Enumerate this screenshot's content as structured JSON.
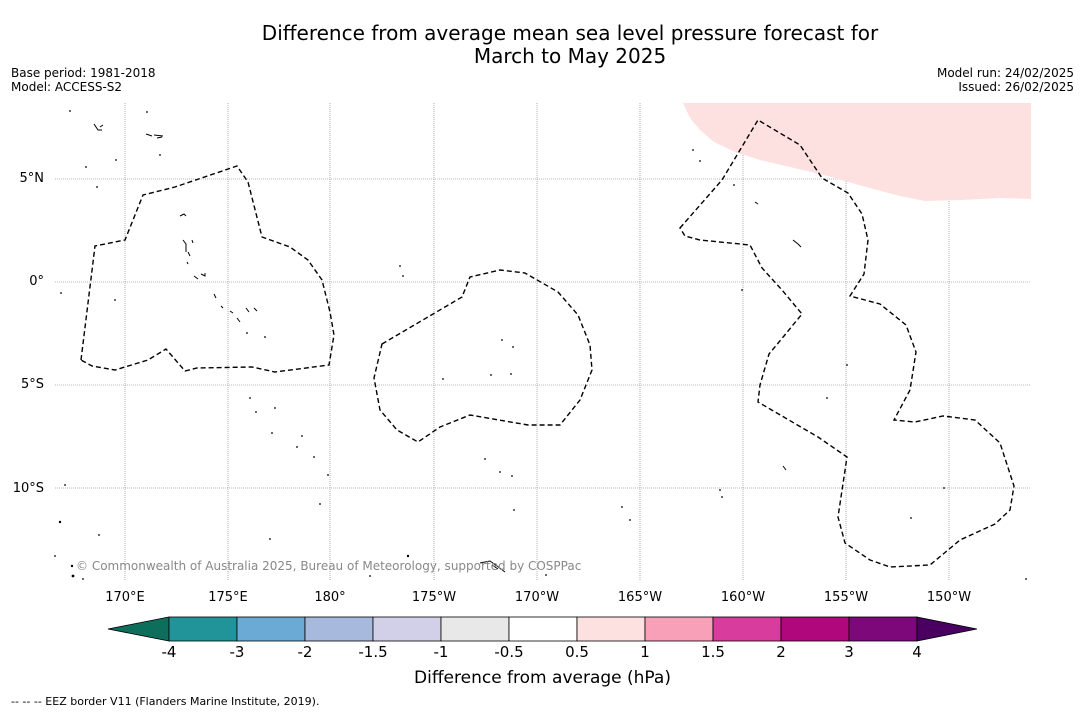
{
  "title": {
    "line1": "Difference from average mean sea level pressure forecast for",
    "line2": "March to May 2025"
  },
  "meta_left": {
    "base_period": "Base period: 1981-2018",
    "model": "Model: ACCESS-S2"
  },
  "meta_right": {
    "model_run": "Model run: 24/02/2025",
    "issued": "Issued: 26/02/2025"
  },
  "map": {
    "lat_labels": [
      "5°N",
      "0°",
      "5°S",
      "10°S"
    ],
    "lon_labels": [
      "170°E",
      "175°E",
      "180°",
      "175°W",
      "170°W",
      "165°W",
      "160°W",
      "155°W",
      "150°W"
    ],
    "copyright": "© Commonwealth of Australia 2025, Bureau of Meteorology, supported by COSPPac",
    "shaded_region_category": "0.5 to 1"
  },
  "colorbar": {
    "title": "Difference from average (hPa)",
    "ticks": [
      "-4",
      "-3",
      "-2",
      "-1.5",
      "-1",
      "-0.5",
      "0.5",
      "1",
      "1.5",
      "2",
      "3",
      "4"
    ],
    "colors": {
      "under": "#0e6e5c",
      "bins": [
        "#21949a",
        "#6aaad5",
        "#a7b9dc",
        "#d2d0e8",
        "#e8e8e8",
        "#ffffff",
        "#fde0e0",
        "#f8a0b8",
        "#d83c9c",
        "#b0087c",
        "#7c087a"
      ],
      "over": "#4a0060"
    }
  },
  "footnote": "-- -- -- EEZ border V11 (Flanders Marine Institute, 2019)."
}
